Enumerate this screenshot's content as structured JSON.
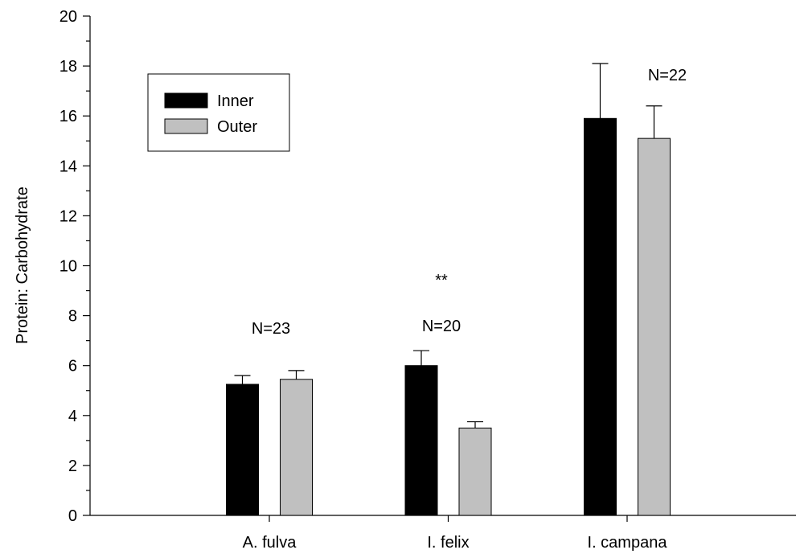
{
  "chart_data": {
    "type": "bar",
    "y_label": "Protein: Carbohydrate",
    "categories": [
      "A. fulva",
      "I. felix",
      "I. campana"
    ],
    "series": [
      {
        "name": "Inner",
        "color": "#000000",
        "values": [
          5.25,
          6.0,
          15.9
        ],
        "errors": [
          0.35,
          0.6,
          2.2
        ]
      },
      {
        "name": "Outer",
        "color": "#c0c0c0",
        "values": [
          5.45,
          3.5,
          15.1
        ],
        "errors": [
          0.35,
          0.25,
          1.3
        ]
      }
    ],
    "annotations": [
      "N=23",
      "**",
      "N=20",
      "N=22"
    ],
    "ylim": [
      0,
      20
    ],
    "yticks": [
      0,
      2,
      4,
      6,
      8,
      10,
      12,
      14,
      16,
      18,
      20
    ],
    "legend": "upper left"
  }
}
